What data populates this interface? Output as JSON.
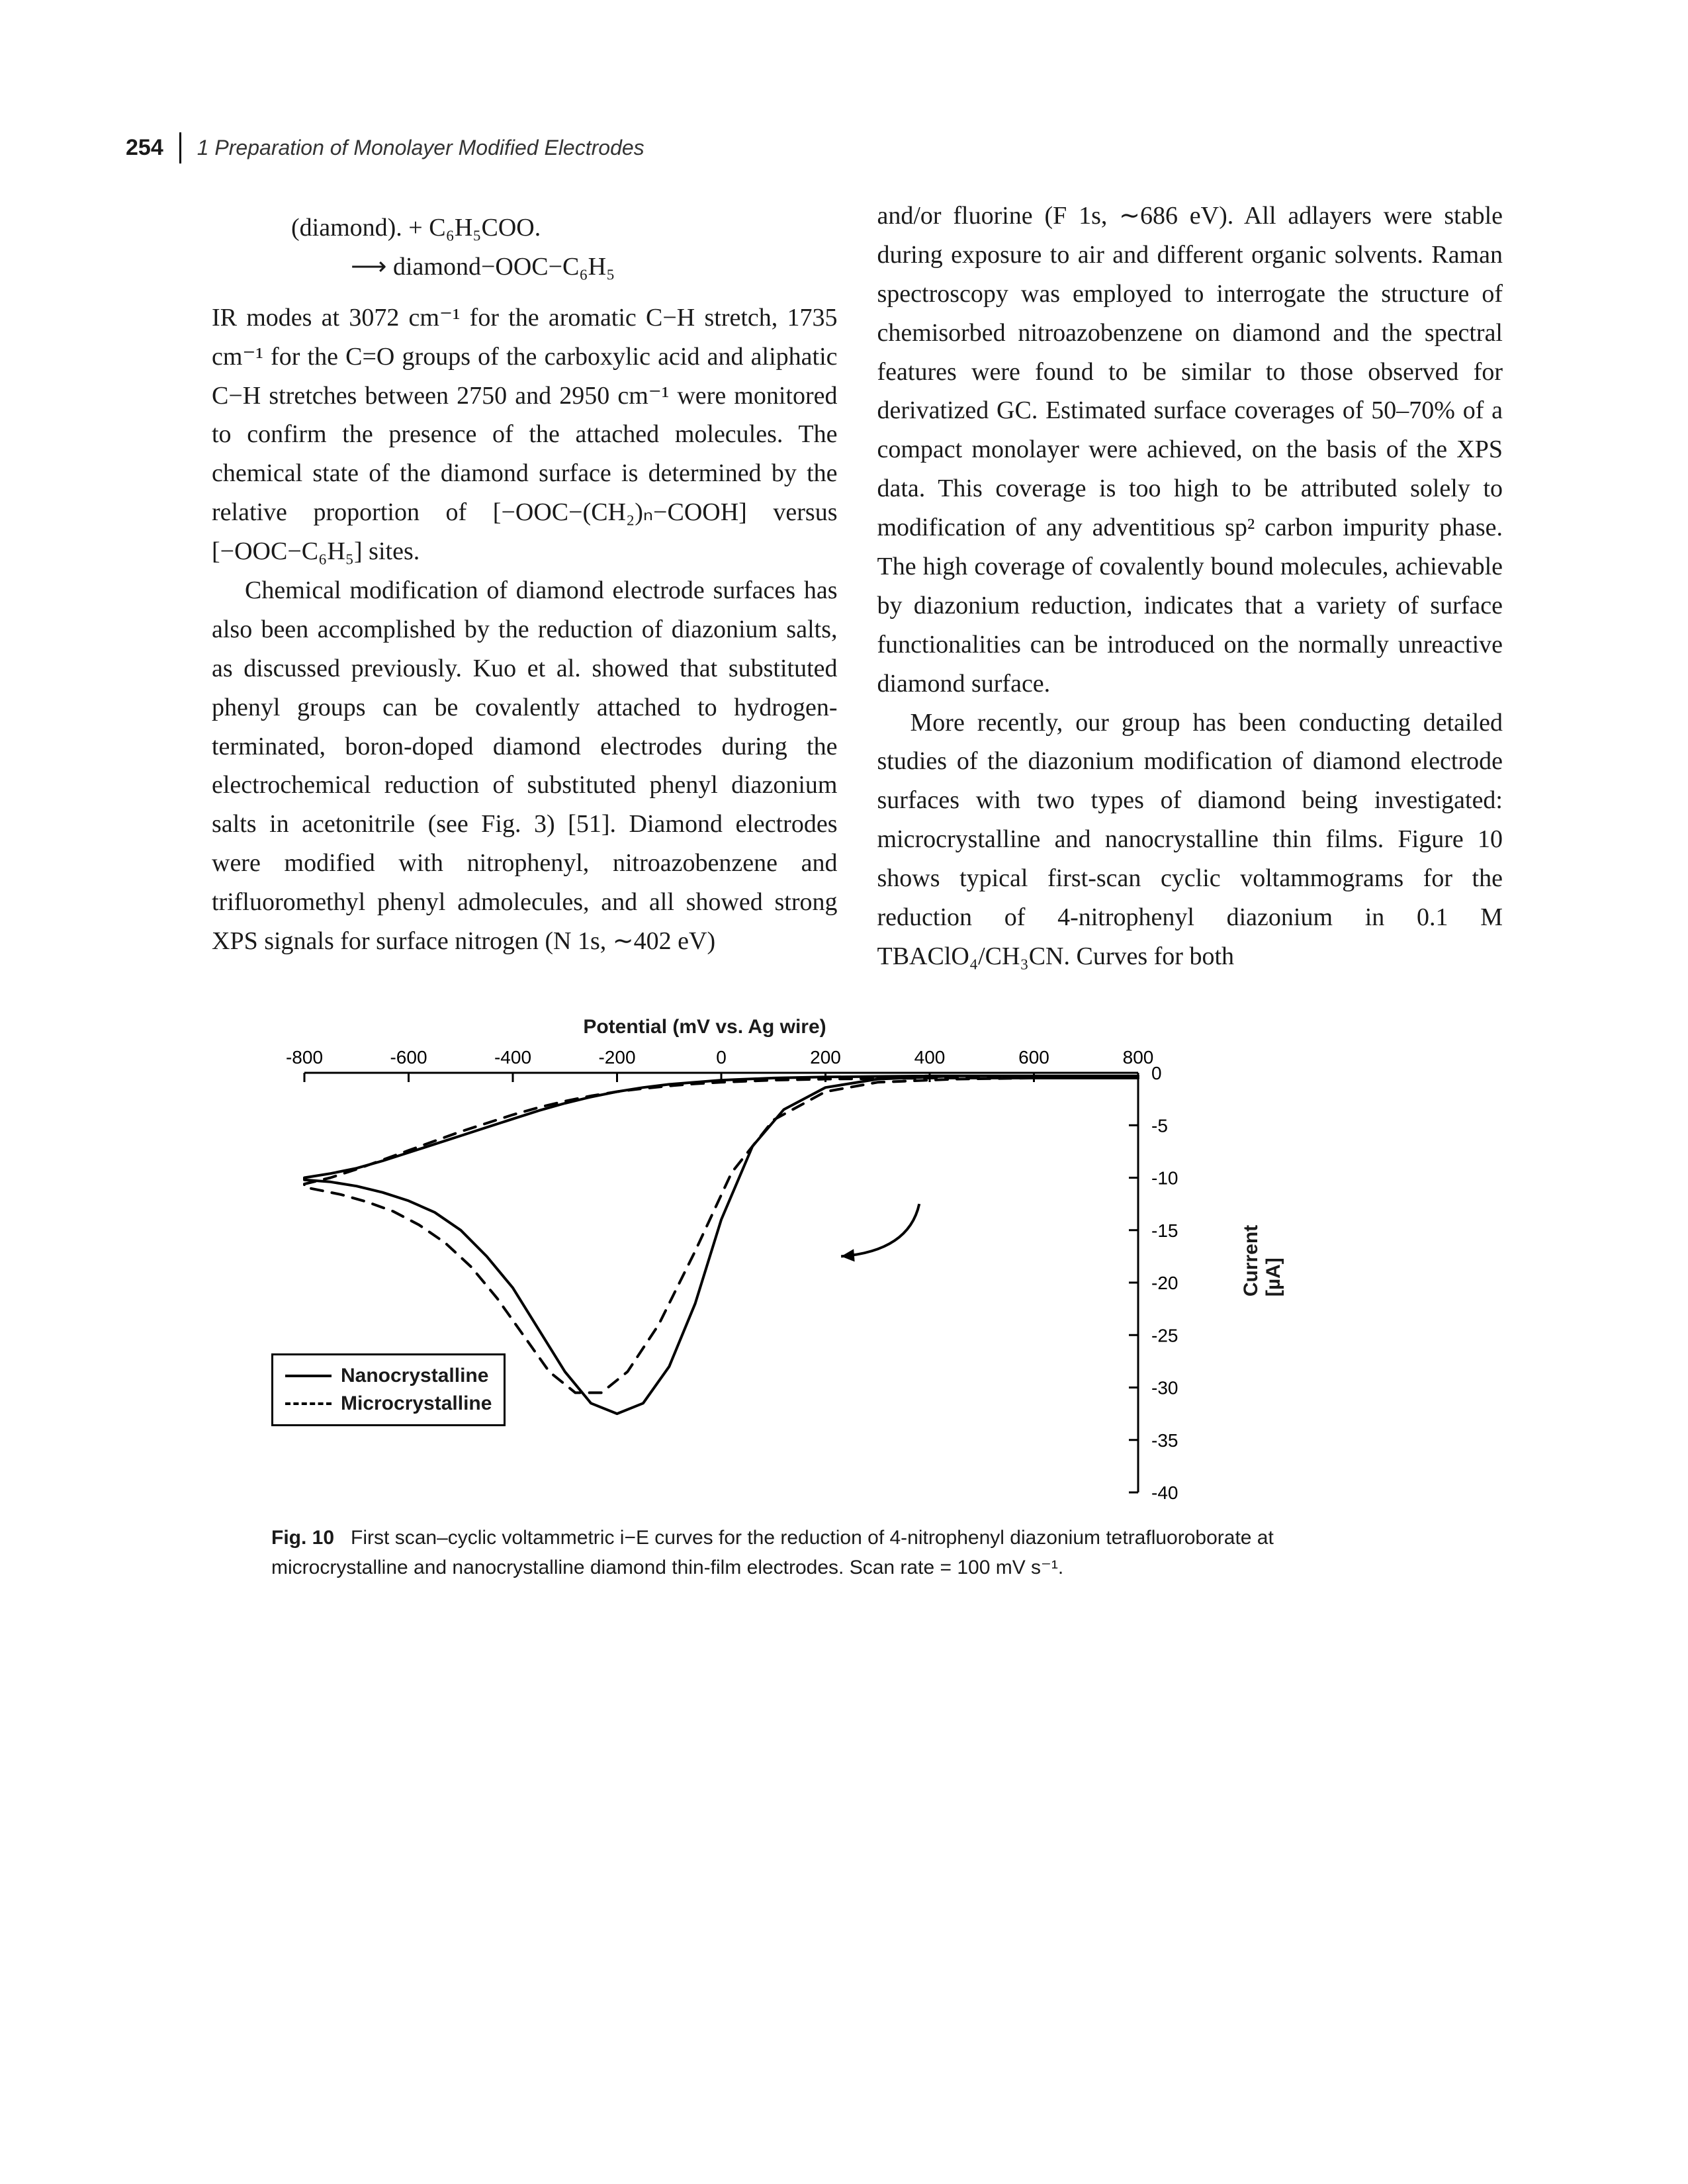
{
  "header": {
    "page_number": "254",
    "chapter_title": "1  Preparation of Monolayer Modified Electrodes"
  },
  "col1": {
    "eq_line1": "(diamond). + C₆H₅COO.",
    "eq_line2": "⟶ diamond−OOC−C₆H₅",
    "p1": "IR modes at 3072 cm⁻¹ for the aromatic C−H stretch, 1735 cm⁻¹ for the C=O groups of the carboxylic acid and aliphatic C−H stretches between 2750 and 2950 cm⁻¹ were monitored to confirm the presence of the attached molecules. The chemical state of the diamond surface is determined by the relative proportion of [−OOC−(CH₂)ₙ−COOH] versus [−OOC−C₆H₅] sites.",
    "p2": "Chemical modification of diamond electrode surfaces has also been accomplished by the reduction of diazonium salts, as discussed previously. Kuo et al. showed that substituted phenyl groups can be covalently attached to hydrogen-terminated, boron-doped diamond electrodes during the electrochemical reduction of substituted phenyl diazonium salts in acetonitrile (see Fig. 3) [51]. Diamond electrodes were modified with nitrophenyl, nitroazobenzene and trifluoromethyl phenyl admolecules, and all showed strong XPS signals for surface nitrogen (N 1s, ∼402 eV)"
  },
  "col2": {
    "p1": "and/or fluorine (F 1s, ∼686 eV). All adlayers were stable during exposure to air and different organic solvents. Raman spectroscopy was employed to interrogate the structure of chemisorbed nitroazobenzene on diamond and the spectral features were found to be similar to those observed for derivatized GC. Estimated surface coverages of 50–70% of a compact monolayer were achieved, on the basis of the XPS data. This coverage is too high to be attributed solely to modification of any adventitious sp² carbon impurity phase. The high coverage of covalently bound molecules, achievable by diazonium reduction, indicates that a variety of surface functionalities can be introduced on the normally unreactive diamond surface.",
    "p2": "More recently, our group has been conducting detailed studies of the diazonium modification of diamond electrode surfaces with two types of diamond being investigated: microcrystalline and nanocrystalline thin films. Figure 10 shows typical first-scan cyclic voltammograms for the reduction of 4-nitrophenyl diazonium in 0.1 M TBAClO₄/CH₃CN. Curves for both"
  },
  "figure": {
    "type": "line",
    "xlabel": "Potential (mV vs. Ag wire)",
    "ylabel": "Current [µA]",
    "xlim": [
      -800,
      800
    ],
    "xticks": [
      -800,
      -600,
      -400,
      -200,
      0,
      200,
      400,
      600,
      800
    ],
    "ylim": [
      -40,
      0
    ],
    "yticks": [
      0,
      -5,
      -10,
      -15,
      -20,
      -25,
      -30,
      -35,
      -40
    ],
    "series": [
      {
        "name": "Nanocrystalline",
        "dash": "solid",
        "color": "#000000",
        "line_width": 4,
        "points": [
          [
            800,
            -0.3
          ],
          [
            600,
            -0.3
          ],
          [
            450,
            -0.3
          ],
          [
            300,
            -0.6
          ],
          [
            200,
            -1.4
          ],
          [
            120,
            -3.5
          ],
          [
            60,
            -7.0
          ],
          [
            0,
            -14.0
          ],
          [
            -50,
            -22.0
          ],
          [
            -100,
            -28.0
          ],
          [
            -150,
            -31.5
          ],
          [
            -200,
            -32.5
          ],
          [
            -250,
            -31.5
          ],
          [
            -300,
            -28.5
          ],
          [
            -350,
            -24.5
          ],
          [
            -400,
            -20.5
          ],
          [
            -450,
            -17.5
          ],
          [
            -500,
            -15.0
          ],
          [
            -550,
            -13.3
          ],
          [
            -600,
            -12.2
          ],
          [
            -650,
            -11.4
          ],
          [
            -700,
            -10.8
          ],
          [
            -750,
            -10.4
          ],
          [
            -800,
            -10.2
          ],
          [
            -800,
            -10.0
          ],
          [
            -750,
            -9.6
          ],
          [
            -700,
            -9.1
          ],
          [
            -650,
            -8.4
          ],
          [
            -600,
            -7.6
          ],
          [
            -550,
            -6.8
          ],
          [
            -500,
            -6.0
          ],
          [
            -450,
            -5.2
          ],
          [
            -400,
            -4.4
          ],
          [
            -350,
            -3.6
          ],
          [
            -300,
            -2.9
          ],
          [
            -250,
            -2.3
          ],
          [
            -200,
            -1.8
          ],
          [
            -150,
            -1.4
          ],
          [
            -100,
            -1.1
          ],
          [
            -50,
            -0.9
          ],
          [
            0,
            -0.7
          ],
          [
            100,
            -0.5
          ],
          [
            200,
            -0.4
          ],
          [
            300,
            -0.35
          ],
          [
            400,
            -0.3
          ],
          [
            500,
            -0.3
          ],
          [
            600,
            -0.3
          ],
          [
            700,
            -0.3
          ],
          [
            800,
            -0.3
          ]
        ]
      },
      {
        "name": "Microcrystalline",
        "dash": "dashed",
        "color": "#000000",
        "line_width": 4,
        "points": [
          [
            800,
            -0.5
          ],
          [
            600,
            -0.5
          ],
          [
            450,
            -0.6
          ],
          [
            300,
            -0.9
          ],
          [
            200,
            -1.8
          ],
          [
            100,
            -4.5
          ],
          [
            20,
            -9.5
          ],
          [
            -50,
            -17.0
          ],
          [
            -120,
            -24.0
          ],
          [
            -180,
            -28.5
          ],
          [
            -230,
            -30.5
          ],
          [
            -280,
            -30.5
          ],
          [
            -330,
            -28.5
          ],
          [
            -380,
            -25.0
          ],
          [
            -430,
            -21.5
          ],
          [
            -480,
            -18.5
          ],
          [
            -530,
            -16.2
          ],
          [
            -580,
            -14.5
          ],
          [
            -630,
            -13.2
          ],
          [
            -680,
            -12.3
          ],
          [
            -730,
            -11.6
          ],
          [
            -780,
            -11.1
          ],
          [
            -800,
            -10.9
          ],
          [
            -800,
            -10.6
          ],
          [
            -750,
            -10.0
          ],
          [
            -700,
            -9.2
          ],
          [
            -650,
            -8.3
          ],
          [
            -600,
            -7.4
          ],
          [
            -550,
            -6.5
          ],
          [
            -500,
            -5.6
          ],
          [
            -450,
            -4.8
          ],
          [
            -400,
            -4.0
          ],
          [
            -350,
            -3.3
          ],
          [
            -300,
            -2.7
          ],
          [
            -250,
            -2.2
          ],
          [
            -200,
            -1.8
          ],
          [
            -150,
            -1.5
          ],
          [
            -100,
            -1.25
          ],
          [
            -50,
            -1.05
          ],
          [
            0,
            -0.9
          ],
          [
            100,
            -0.7
          ],
          [
            200,
            -0.6
          ],
          [
            300,
            -0.55
          ],
          [
            400,
            -0.5
          ],
          [
            500,
            -0.5
          ],
          [
            600,
            -0.5
          ],
          [
            700,
            -0.5
          ],
          [
            800,
            -0.5
          ]
        ]
      }
    ],
    "arrow": {
      "from": [
        380,
        -12.5
      ],
      "to": [
        230,
        -17.5
      ],
      "curve": [
        360,
        -17
      ]
    },
    "legend": [
      {
        "label": "Nanocrystalline",
        "dash": "solid"
      },
      {
        "label": "Microcrystalline",
        "dash": "dashed"
      }
    ],
    "caption_label": "Fig. 10",
    "caption_text": "First scan–cyclic voltammetric i−E curves for the reduction of 4-nitrophenyl diazonium tetrafluoroborate at microcrystalline and nanocrystalline diamond thin-film electrodes. Scan rate = 100 mV s⁻¹.",
    "plot_bg": "#ffffff",
    "axis_color": "#000000",
    "tick_font_size": 28,
    "label_font_size": 30,
    "label_font_weight": "bold",
    "tick_len": 14
  }
}
